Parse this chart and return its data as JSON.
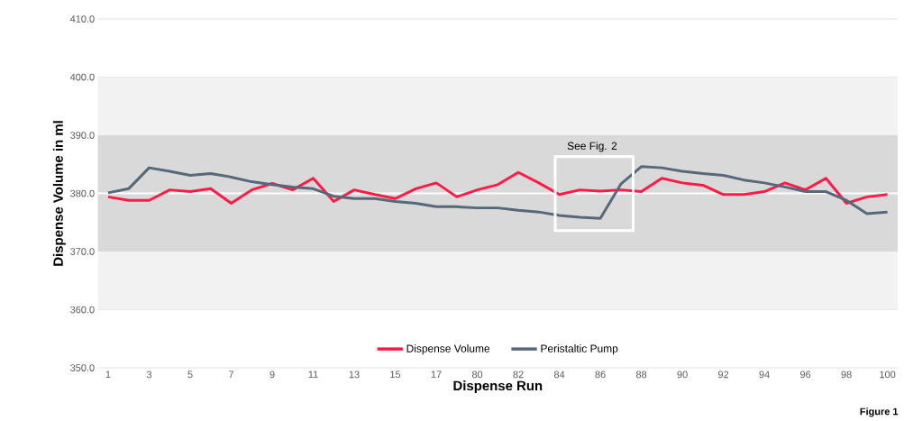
{
  "chart_data": {
    "type": "line",
    "xlabel": "Dispense Run",
    "ylabel": "Dispense Volume in ml",
    "categories": [
      "1",
      null,
      "3",
      null,
      "5",
      null,
      "7",
      null,
      "9",
      null,
      "11",
      null,
      "13",
      null,
      "15",
      null,
      "17",
      null,
      "80",
      null,
      "82",
      null,
      "84",
      null,
      "86",
      null,
      "88",
      null,
      "90",
      null,
      "92",
      null,
      "94",
      null,
      "96",
      null,
      "98",
      null,
      "100"
    ],
    "series": [
      {
        "name": "Dispense Volume",
        "color": "#ff1a47",
        "values": [
          379.4,
          378.8,
          378.8,
          380.6,
          380.3,
          380.8,
          378.3,
          380.6,
          381.7,
          380.6,
          382.6,
          378.6,
          380.6,
          379.8,
          379.1,
          380.8,
          381.8,
          379.4,
          380.6,
          381.5,
          383.6,
          381.8,
          379.8,
          380.6,
          380.4,
          380.6,
          380.3,
          382.6,
          381.8,
          381.4,
          379.8,
          379.8,
          380.3,
          381.8,
          380.6,
          382.6,
          378.3,
          379.4,
          379.8
        ]
      },
      {
        "name": "Peristaltic Pump",
        "color": "#56697a",
        "values": [
          380.1,
          380.8,
          384.4,
          383.8,
          383.1,
          383.4,
          382.8,
          382.0,
          381.5,
          381.1,
          380.8,
          379.5,
          379.1,
          379.1,
          378.6,
          378.3,
          377.7,
          377.7,
          377.5,
          377.5,
          377.1,
          376.8,
          376.2,
          375.9,
          375.7,
          381.6,
          384.6,
          384.4,
          383.8,
          383.4,
          383.1,
          382.3,
          381.8,
          381.1,
          380.3,
          380.3,
          378.8,
          376.5,
          376.8
        ]
      }
    ],
    "ylim": [
      350,
      410
    ],
    "yticks": [
      {
        "value": 350,
        "label": "350.0"
      },
      {
        "value": 360,
        "label": "360.0"
      },
      {
        "value": 370,
        "label": "370.0"
      },
      {
        "value": 380,
        "label": "380.0"
      },
      {
        "value": 390,
        "label": "390.0"
      },
      {
        "value": 400,
        "label": "400.0"
      },
      {
        "value": 410,
        "label": "410.0"
      }
    ],
    "bands": [
      {
        "axis": "y",
        "from": 360,
        "to": 400,
        "color": "#f2f2f2"
      },
      {
        "axis": "y",
        "from": 370,
        "to": 390,
        "color": "#d9d9d9"
      }
    ],
    "ref_lines": [
      {
        "axis": "y",
        "value": 380,
        "color": "#ffffff"
      }
    ],
    "annotations": [
      "See Fig. 2",
      "Figure 1"
    ],
    "grid": "y",
    "legend": "bottom",
    "marker": "none",
    "line_style": "solid"
  }
}
